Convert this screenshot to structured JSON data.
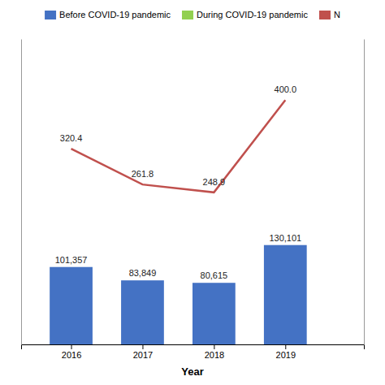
{
  "chart_data": {
    "type": "bar",
    "xlabel": "Year",
    "x": [
      2016,
      2017,
      2018,
      2019
    ],
    "xlim": [
      2015.3,
      2020.1
    ],
    "xticks": [
      2016,
      2017,
      2018,
      2019
    ],
    "ylim": [
      0,
      400000
    ],
    "y2lim": [
      0,
      500
    ],
    "tick_labels": "x",
    "grid": false,
    "legend": "top",
    "data_labels": true,
    "series": [
      {
        "name": "Before COVID-19 pandemic",
        "type": "bar",
        "color": "#4472C4",
        "values": [
          101357,
          83849,
          80615,
          130101
        ],
        "value_labels": [
          "101,357",
          "83,849",
          "80,615",
          "130,101"
        ]
      },
      {
        "name": "During COVID-19 pandemic",
        "type": "bar",
        "color": "#92D050",
        "values": [
          null,
          null,
          null,
          null
        ]
      },
      {
        "name": "N",
        "type": "line",
        "axis": "y2",
        "color": "#C0504D",
        "values": [
          320.4,
          261.8,
          248.9,
          400.0
        ],
        "value_labels": [
          "320.4",
          "261.8",
          "248.9",
          "400.0"
        ]
      }
    ]
  }
}
